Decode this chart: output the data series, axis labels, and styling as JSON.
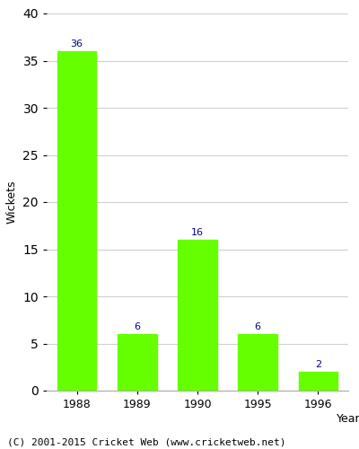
{
  "categories": [
    "1988",
    "1989",
    "1990",
    "1995",
    "1996"
  ],
  "values": [
    36,
    6,
    16,
    6,
    2
  ],
  "bar_color": "#66ff00",
  "bar_edgecolor": "#66ff00",
  "label_color": "#000080",
  "xlabel": "Year",
  "ylabel": "Wickets",
  "ylim": [
    0,
    40
  ],
  "yticks": [
    0,
    5,
    10,
    15,
    20,
    25,
    30,
    35,
    40
  ],
  "grid_color": "#d0d0d0",
  "background_color": "#ffffff",
  "footer": "(C) 2001-2015 Cricket Web (www.cricketweb.net)",
  "label_fontsize": 8,
  "axis_fontsize": 9,
  "footer_fontsize": 8,
  "tick_fontsize": 9
}
